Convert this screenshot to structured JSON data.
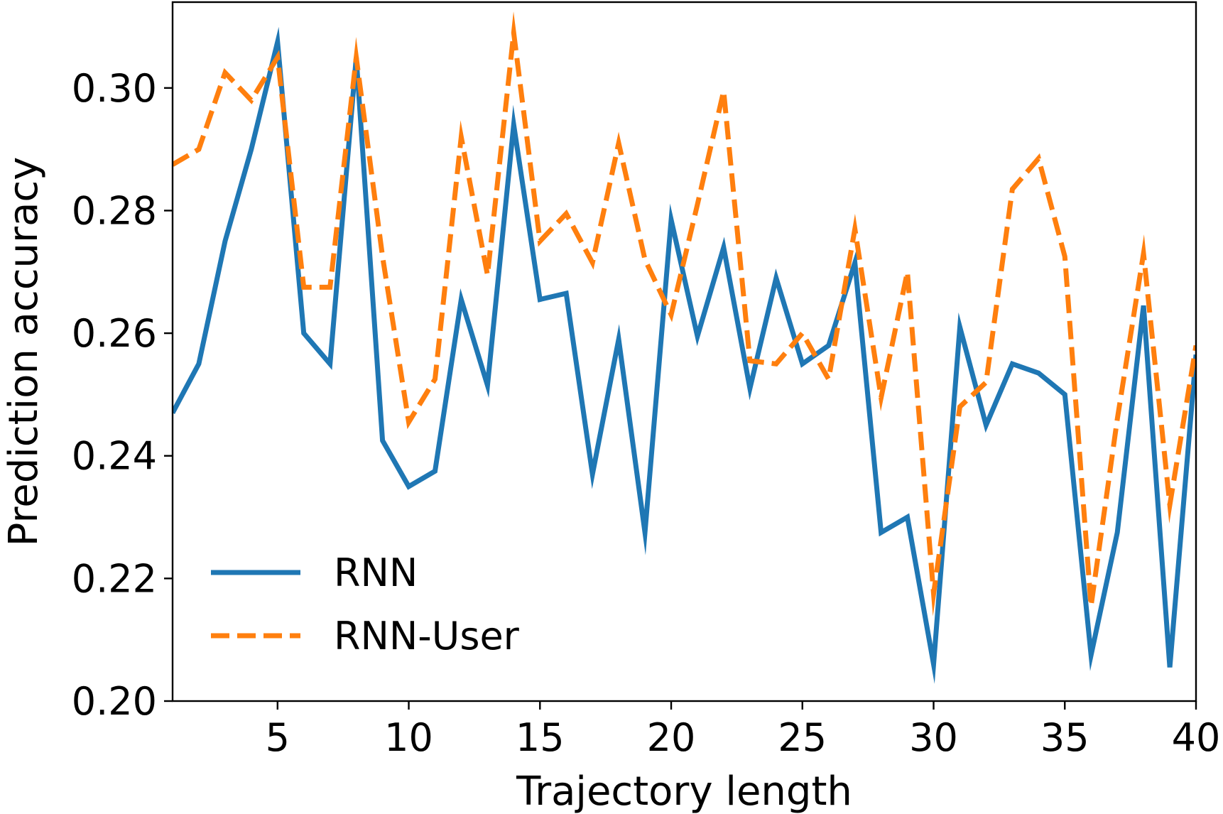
{
  "chart_data": {
    "type": "line",
    "title": "",
    "xlabel": "Trajectory length",
    "ylabel": "Prediction accuracy",
    "xlim": [
      1,
      40
    ],
    "ylim": [
      0.2,
      0.314
    ],
    "xticks": [
      5,
      10,
      15,
      20,
      25,
      30,
      35,
      40
    ],
    "xtick_labels": [
      "5",
      "10",
      "15",
      "20",
      "25",
      "30",
      "35",
      "40"
    ],
    "yticks": [
      0.2,
      0.22,
      0.24,
      0.26,
      0.28,
      0.3
    ],
    "ytick_labels": [
      "0.20",
      "0.22",
      "0.24",
      "0.26",
      "0.28",
      "0.30"
    ],
    "grid": false,
    "legend_position": "lower-left",
    "x": [
      1,
      2,
      3,
      4,
      5,
      6,
      7,
      8,
      9,
      10,
      11,
      12,
      13,
      14,
      15,
      16,
      17,
      18,
      19,
      20,
      21,
      22,
      23,
      24,
      25,
      26,
      27,
      28,
      29,
      30,
      31,
      32,
      33,
      34,
      35,
      36,
      37,
      38,
      39,
      40
    ],
    "series": [
      {
        "name": "RNN",
        "color": "#1f77b4",
        "style": "solid",
        "values": [
          0.247,
          0.255,
          0.275,
          0.29,
          0.3075,
          0.26,
          0.255,
          0.305,
          0.2425,
          0.235,
          0.2375,
          0.2655,
          0.2515,
          0.294,
          0.2655,
          0.2665,
          0.237,
          0.259,
          0.2275,
          0.2785,
          0.2595,
          0.274,
          0.251,
          0.269,
          0.255,
          0.258,
          0.2715,
          0.2275,
          0.23,
          0.206,
          0.261,
          0.245,
          0.255,
          0.2535,
          0.25,
          0.2075,
          0.2275,
          0.2645,
          0.2055,
          0.2565
        ]
      },
      {
        "name": "RNN-User",
        "color": "#ff7f0e",
        "style": "dashed",
        "values": [
          0.2875,
          0.29,
          0.3025,
          0.298,
          0.305,
          0.2675,
          0.2675,
          0.305,
          0.2725,
          0.2455,
          0.2525,
          0.292,
          0.2695,
          0.309,
          0.275,
          0.2795,
          0.2715,
          0.291,
          0.272,
          0.263,
          0.281,
          0.2995,
          0.2555,
          0.255,
          0.26,
          0.2525,
          0.277,
          0.2495,
          0.27,
          0.2175,
          0.248,
          0.252,
          0.2835,
          0.2885,
          0.2725,
          0.2155,
          0.246,
          0.273,
          0.232,
          0.258
        ]
      }
    ]
  }
}
